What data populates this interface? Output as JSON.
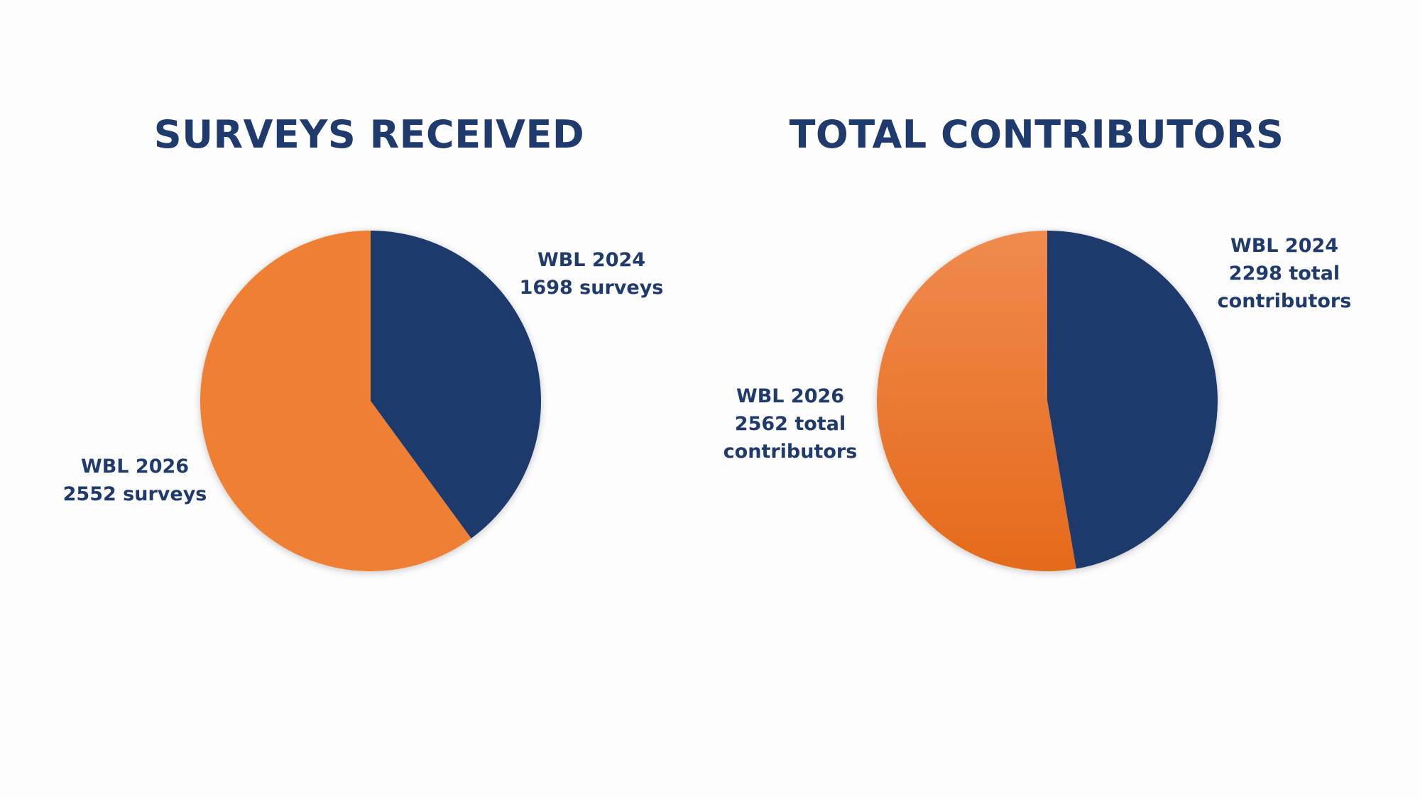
{
  "colors": {
    "title": "#1f3a6c",
    "navy": "#1f3a6c",
    "orange": "#ef7f33",
    "orange_light": "#f08a4e",
    "orange_dark": "#e56a1a"
  },
  "chart_data": [
    {
      "type": "pie",
      "title": "SURVEYS RECEIVED",
      "categories": [
        "WBL 2024",
        "WBL 2026"
      ],
      "values": [
        1698,
        2552
      ],
      "labels": [
        [
          "WBL 2024",
          "1698 surveys"
        ],
        [
          "WBL 2026",
          "2552 surveys"
        ]
      ]
    },
    {
      "type": "pie",
      "title": "TOTAL CONTRIBUTORS",
      "categories": [
        "WBL 2024",
        "WBL 2026"
      ],
      "values": [
        2298,
        2562
      ],
      "labels": [
        [
          "WBL 2024",
          "2298 total",
          "contributors"
        ],
        [
          "WBL 2026",
          "2562 total",
          "contributors"
        ]
      ]
    }
  ]
}
